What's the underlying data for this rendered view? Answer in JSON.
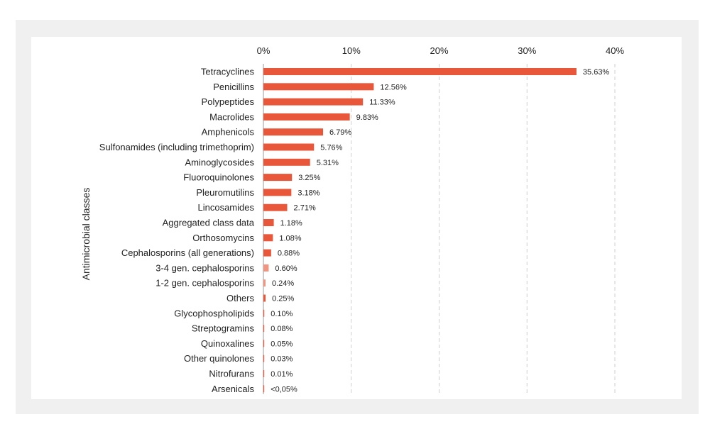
{
  "chart_data": {
    "type": "bar",
    "orientation": "horizontal",
    "ylabel": "Antimicrobial classes",
    "xlim": [
      0,
      40
    ],
    "xticks": [
      0,
      10,
      20,
      30,
      40
    ],
    "xtick_labels": [
      "0%",
      "10%",
      "20%",
      "30%",
      "40%"
    ],
    "grid": "vertical dashed",
    "bar_color": "#e8573a",
    "light_bar_color": "#f0957f",
    "categories": [
      "Tetracyclines",
      "Penicillins",
      "Polypeptides",
      "Macrolides",
      "Amphenicols",
      "Sulfonamides (including trimethoprim)",
      "Aminoglycosides",
      "Fluoroquinolones",
      "Pleuromutilins",
      "Lincosamides",
      "Aggregated class data",
      "Orthosomycins",
      "Cephalosporins (all generations)",
      "3-4 gen. cephalosporins",
      "1-2 gen. cephalosporins",
      "Others",
      "Glycophospholipids",
      "Streptogramins",
      "Quinoxalines",
      "Other quinolones",
      "Nitrofurans",
      "Arsenicals"
    ],
    "values": [
      35.63,
      12.56,
      11.33,
      9.83,
      6.79,
      5.76,
      5.31,
      3.25,
      3.18,
      2.71,
      1.18,
      1.08,
      0.88,
      0.6,
      0.24,
      0.25,
      0.1,
      0.08,
      0.05,
      0.03,
      0.01,
      0.04
    ],
    "data_labels": [
      "35.63%",
      "12.56%",
      "11.33%",
      "9.83%",
      "6.79%",
      "5.76%",
      "5.31%",
      "3.25%",
      "3.18%",
      "2.71%",
      "1.18%",
      "1.08%",
      "0.88%",
      "0.60%",
      "0.24%",
      "0.25%",
      "0.10%",
      "0.08%",
      "0.05%",
      "0.03%",
      "0.01%",
      "<0,05%"
    ],
    "light_bars": [
      "3-4 gen. cephalosporins",
      "1-2 gen. cephalosporins"
    ]
  }
}
